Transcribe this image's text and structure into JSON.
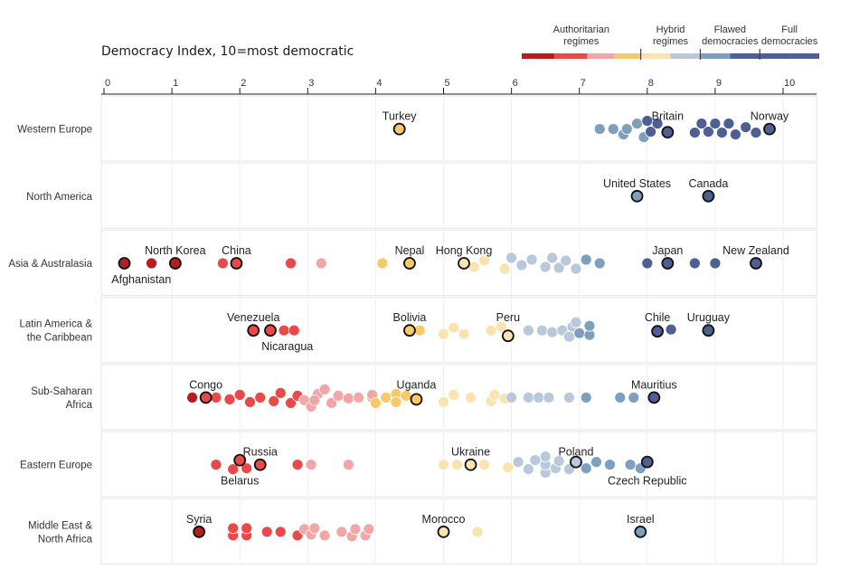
{
  "chart_data": {
    "type": "scatter",
    "title": "Democracy Index, 10=most democratic",
    "xlim": [
      0,
      10
    ],
    "x_ticks": [
      "0",
      "1",
      "2",
      "3",
      "4",
      "5",
      "6",
      "7",
      "8",
      "9",
      "10"
    ],
    "grid": true,
    "legend": {
      "placement": "top-right",
      "categories": [
        {
          "label": [
            "Authoritarian",
            "regimes"
          ],
          "range": [
            0,
            4
          ],
          "colors": [
            "#b81d1d",
            "#e84a4a",
            "#f2a6a6"
          ]
        },
        {
          "label": [
            "Hybrid",
            "regimes"
          ],
          "range": [
            4,
            6
          ],
          "colors": [
            "#f7c96a",
            "#fbe3b0"
          ]
        },
        {
          "label": [
            "Flawed",
            "democracies"
          ],
          "range": [
            6,
            8
          ],
          "colors": [
            "#b9c8db",
            "#7f9fbf"
          ]
        },
        {
          "label": [
            "Full",
            "democracies"
          ],
          "range": [
            8,
            10
          ],
          "colors": [
            "#4d5f93"
          ]
        }
      ]
    },
    "regions": [
      {
        "name": [
          "Western Europe"
        ],
        "points": [
          {
            "x": 7.3,
            "y": 0
          },
          {
            "x": 7.5,
            "y": 0
          },
          {
            "x": 7.65,
            "y": 0.6
          },
          {
            "x": 7.7,
            "y": 0
          },
          {
            "x": 7.85,
            "y": -0.6
          },
          {
            "x": 7.95,
            "y": 0.9
          },
          {
            "x": 8.05,
            "y": 0.3
          },
          {
            "x": 8.0,
            "y": -0.9
          },
          {
            "x": 8.15,
            "y": -0.6
          },
          {
            "x": 8.3,
            "y": 0.35,
            "hl": true
          },
          {
            "x": 8.7,
            "y": 0.4
          },
          {
            "x": 8.8,
            "y": -0.6
          },
          {
            "x": 8.9,
            "y": 0.3
          },
          {
            "x": 9.0,
            "y": -0.6
          },
          {
            "x": 9.1,
            "y": 0.4
          },
          {
            "x": 9.2,
            "y": -0.6
          },
          {
            "x": 9.3,
            "y": 0.6
          },
          {
            "x": 9.45,
            "y": -0.2
          },
          {
            "x": 9.6,
            "y": 0.4
          },
          {
            "x": 9.8,
            "y": 0,
            "hl": true
          },
          {
            "x": 4.35,
            "y": 0,
            "hl": true
          }
        ],
        "labels": [
          {
            "text": "Turkey",
            "x": 4.35,
            "pos": "above"
          },
          {
            "text": "Britain",
            "x": 8.3,
            "pos": "above"
          },
          {
            "text": "Norway",
            "x": 9.8,
            "pos": "above"
          }
        ]
      },
      {
        "name": [
          "North America"
        ],
        "points": [
          {
            "x": 7.85,
            "y": 0,
            "hl": true
          },
          {
            "x": 8.9,
            "y": 0,
            "hl": true
          }
        ],
        "labels": [
          {
            "text": "United States",
            "x": 7.85,
            "pos": "above"
          },
          {
            "text": "Canada",
            "x": 8.9,
            "pos": "above"
          }
        ]
      },
      {
        "name": [
          "Asia & Australasia"
        ],
        "points": [
          {
            "x": 0.3,
            "y": 0,
            "hl": true
          },
          {
            "x": 0.7,
            "y": 0
          },
          {
            "x": 1.05,
            "y": 0,
            "hl": true
          },
          {
            "x": 1.75,
            "y": 0
          },
          {
            "x": 1.95,
            "y": 0,
            "hl": true
          },
          {
            "x": 2.75,
            "y": 0
          },
          {
            "x": 3.2,
            "y": 0
          },
          {
            "x": 4.1,
            "y": 0
          },
          {
            "x": 4.5,
            "y": 0,
            "hl": true
          },
          {
            "x": 5.3,
            "y": 0,
            "hl": true
          },
          {
            "x": 5.45,
            "y": 0.4
          },
          {
            "x": 5.6,
            "y": -0.3
          },
          {
            "x": 5.9,
            "y": 0.6
          },
          {
            "x": 6.0,
            "y": -0.6
          },
          {
            "x": 6.15,
            "y": 0.2
          },
          {
            "x": 6.3,
            "y": -0.4
          },
          {
            "x": 6.5,
            "y": 0.4
          },
          {
            "x": 6.6,
            "y": -0.6
          },
          {
            "x": 6.7,
            "y": 0.5
          },
          {
            "x": 6.8,
            "y": -0.3
          },
          {
            "x": 6.95,
            "y": 0.6
          },
          {
            "x": 7.1,
            "y": -0.4
          },
          {
            "x": 7.3,
            "y": 0
          },
          {
            "x": 8.0,
            "y": 0
          },
          {
            "x": 8.3,
            "y": 0,
            "hl": true
          },
          {
            "x": 8.7,
            "y": 0
          },
          {
            "x": 9.0,
            "y": 0
          },
          {
            "x": 9.6,
            "y": 0,
            "hl": true
          }
        ],
        "labels": [
          {
            "text": "Afghanistan",
            "x": 0.55,
            "pos": "below"
          },
          {
            "text": "North Korea",
            "x": 1.05,
            "pos": "above"
          },
          {
            "text": "China",
            "x": 1.95,
            "pos": "above"
          },
          {
            "text": "Nepal",
            "x": 4.5,
            "pos": "above"
          },
          {
            "text": "Hong Kong",
            "x": 5.3,
            "pos": "above"
          },
          {
            "text": "Japan",
            "x": 8.3,
            "pos": "above"
          },
          {
            "text": "New Zealand",
            "x": 9.6,
            "pos": "above"
          }
        ]
      },
      {
        "name": [
          "Latin America &",
          "the Caribbean"
        ],
        "points": [
          {
            "x": 2.2,
            "y": 0,
            "hl": true
          },
          {
            "x": 2.45,
            "y": 0,
            "hl": true
          },
          {
            "x": 2.65,
            "y": 0
          },
          {
            "x": 2.8,
            "y": 0
          },
          {
            "x": 4.5,
            "y": 0,
            "hl": true
          },
          {
            "x": 4.65,
            "y": 0
          },
          {
            "x": 5.0,
            "y": 0.4
          },
          {
            "x": 5.15,
            "y": -0.3
          },
          {
            "x": 5.3,
            "y": 0.4
          },
          {
            "x": 5.7,
            "y": 0
          },
          {
            "x": 5.85,
            "y": -0.4
          },
          {
            "x": 5.95,
            "y": 0.6,
            "hl": true
          },
          {
            "x": 6.25,
            "y": 0
          },
          {
            "x": 6.45,
            "y": 0
          },
          {
            "x": 6.6,
            "y": 0.2
          },
          {
            "x": 6.75,
            "y": 0
          },
          {
            "x": 6.85,
            "y": 0.7
          },
          {
            "x": 6.9,
            "y": -0.4
          },
          {
            "x": 7.0,
            "y": 0.3
          },
          {
            "x": 6.95,
            "y": -0.9
          },
          {
            "x": 7.15,
            "y": 0.5
          },
          {
            "x": 7.15,
            "y": -0.5
          },
          {
            "x": 8.15,
            "y": 0.1,
            "hl": true
          },
          {
            "x": 8.35,
            "y": -0.1
          },
          {
            "x": 8.9,
            "y": 0,
            "hl": true
          }
        ],
        "labels": [
          {
            "text": "Venezuela",
            "x": 2.2,
            "pos": "above"
          },
          {
            "text": "Nicaragua",
            "x": 2.7,
            "pos": "below"
          },
          {
            "text": "Bolivia",
            "x": 4.5,
            "pos": "above"
          },
          {
            "text": "Peru",
            "x": 5.95,
            "pos": "above"
          },
          {
            "text": "Chile",
            "x": 8.15,
            "pos": "above"
          },
          {
            "text": "Uruguay",
            "x": 8.9,
            "pos": "above"
          }
        ]
      },
      {
        "name": [
          "Sub-Saharan",
          "Africa"
        ],
        "points": [
          {
            "x": 1.3,
            "y": 0
          },
          {
            "x": 1.5,
            "y": 0,
            "hl": true
          },
          {
            "x": 1.65,
            "y": 0
          },
          {
            "x": 1.85,
            "y": 0.2
          },
          {
            "x": 2.0,
            "y": -0.3
          },
          {
            "x": 2.15,
            "y": 0.5
          },
          {
            "x": 2.3,
            "y": 0
          },
          {
            "x": 2.5,
            "y": 0.4
          },
          {
            "x": 2.6,
            "y": -0.5
          },
          {
            "x": 2.75,
            "y": 0.6
          },
          {
            "x": 2.85,
            "y": -0.2
          },
          {
            "x": 2.95,
            "y": 0.3
          },
          {
            "x": 3.05,
            "y": 1.0
          },
          {
            "x": 3.15,
            "y": -0.4
          },
          {
            "x": 3.1,
            "y": 0.3
          },
          {
            "x": 3.25,
            "y": -0.9
          },
          {
            "x": 3.35,
            "y": 0.6
          },
          {
            "x": 3.45,
            "y": -0.2
          },
          {
            "x": 3.6,
            "y": 0.1
          },
          {
            "x": 3.75,
            "y": 0
          },
          {
            "x": 3.95,
            "y": 0
          },
          {
            "x": 3.95,
            "y": -0.3
          },
          {
            "x": 4.0,
            "y": 0.6
          },
          {
            "x": 4.15,
            "y": 0
          },
          {
            "x": 4.3,
            "y": -0.4
          },
          {
            "x": 4.3,
            "y": 0.5
          },
          {
            "x": 4.45,
            "y": -0.2
          },
          {
            "x": 4.6,
            "y": 0.2,
            "hl": true
          },
          {
            "x": 5.0,
            "y": 0.5
          },
          {
            "x": 5.15,
            "y": -0.3
          },
          {
            "x": 5.4,
            "y": 0
          },
          {
            "x": 5.7,
            "y": 0.4
          },
          {
            "x": 5.75,
            "y": -0.3
          },
          {
            "x": 5.9,
            "y": 0.1
          },
          {
            "x": 6.0,
            "y": 0
          },
          {
            "x": 6.25,
            "y": 0
          },
          {
            "x": 6.4,
            "y": 0
          },
          {
            "x": 6.55,
            "y": 0
          },
          {
            "x": 6.85,
            "y": 0
          },
          {
            "x": 7.1,
            "y": 0
          },
          {
            "x": 7.6,
            "y": 0
          },
          {
            "x": 7.8,
            "y": 0
          },
          {
            "x": 8.1,
            "y": 0,
            "hl": true
          }
        ],
        "labels": [
          {
            "text": "Congo",
            "x": 1.5,
            "pos": "above"
          },
          {
            "text": "Uganda",
            "x": 4.6,
            "pos": "above"
          },
          {
            "text": "Mauritius",
            "x": 8.1,
            "pos": "above"
          }
        ]
      },
      {
        "name": [
          "Eastern Europe"
        ],
        "points": [
          {
            "x": 1.65,
            "y": 0
          },
          {
            "x": 1.9,
            "y": 0.5
          },
          {
            "x": 2.0,
            "y": -0.5,
            "hl": true
          },
          {
            "x": 2.1,
            "y": 0.4
          },
          {
            "x": 2.3,
            "y": 0,
            "hl": true
          },
          {
            "x": 2.85,
            "y": 0
          },
          {
            "x": 3.05,
            "y": 0
          },
          {
            "x": 3.6,
            "y": 0
          },
          {
            "x": 5.0,
            "y": 0
          },
          {
            "x": 5.2,
            "y": 0
          },
          {
            "x": 5.4,
            "y": 0,
            "hl": true
          },
          {
            "x": 5.6,
            "y": 0
          },
          {
            "x": 5.95,
            "y": 0.3
          },
          {
            "x": 6.1,
            "y": -0.3
          },
          {
            "x": 6.25,
            "y": 0.5
          },
          {
            "x": 6.35,
            "y": -0.5
          },
          {
            "x": 6.5,
            "y": 0.9
          },
          {
            "x": 6.5,
            "y": 0
          },
          {
            "x": 6.5,
            "y": -0.9
          },
          {
            "x": 6.65,
            "y": 0.4
          },
          {
            "x": 6.7,
            "y": -0.4
          },
          {
            "x": 6.85,
            "y": 0.5
          },
          {
            "x": 6.95,
            "y": -0.3,
            "hl": true
          },
          {
            "x": 7.1,
            "y": 0.4
          },
          {
            "x": 7.25,
            "y": -0.3
          },
          {
            "x": 7.45,
            "y": 0
          },
          {
            "x": 7.75,
            "y": 0
          },
          {
            "x": 7.9,
            "y": 0.4
          },
          {
            "x": 8.0,
            "y": -0.3,
            "hl": true
          }
        ],
        "labels": [
          {
            "text": "Russia",
            "x": 2.3,
            "pos": "above"
          },
          {
            "text": "Belarus",
            "x": 2.0,
            "pos": "below"
          },
          {
            "text": "Ukraine",
            "x": 5.4,
            "pos": "above"
          },
          {
            "text": "Poland",
            "x": 6.95,
            "pos": "above"
          },
          {
            "text": "Czech Republic",
            "x": 8.0,
            "pos": "below"
          }
        ]
      },
      {
        "name": [
          "Middle East &",
          "North Africa"
        ],
        "points": [
          {
            "x": 1.4,
            "y": 0,
            "hl": true
          },
          {
            "x": 1.9,
            "y": 0.4
          },
          {
            "x": 1.9,
            "y": -0.4
          },
          {
            "x": 2.1,
            "y": 0.4
          },
          {
            "x": 2.1,
            "y": -0.4
          },
          {
            "x": 2.4,
            "y": 0
          },
          {
            "x": 2.6,
            "y": 0
          },
          {
            "x": 2.85,
            "y": 0.4
          },
          {
            "x": 2.95,
            "y": -0.3
          },
          {
            "x": 3.05,
            "y": 0.3
          },
          {
            "x": 3.1,
            "y": -0.4
          },
          {
            "x": 3.25,
            "y": 0.4
          },
          {
            "x": 3.5,
            "y": 0
          },
          {
            "x": 3.65,
            "y": 0.5
          },
          {
            "x": 3.7,
            "y": -0.3
          },
          {
            "x": 3.85,
            "y": 0.4
          },
          {
            "x": 3.9,
            "y": -0.3
          },
          {
            "x": 5.0,
            "y": 0,
            "hl": true
          },
          {
            "x": 5.5,
            "y": 0
          },
          {
            "x": 7.9,
            "y": 0,
            "hl": true
          }
        ],
        "labels": [
          {
            "text": "Syria",
            "x": 1.4,
            "pos": "above"
          },
          {
            "text": "Morocco",
            "x": 5.0,
            "pos": "above"
          },
          {
            "text": "Israel",
            "x": 7.9,
            "pos": "above"
          }
        ]
      }
    ]
  }
}
